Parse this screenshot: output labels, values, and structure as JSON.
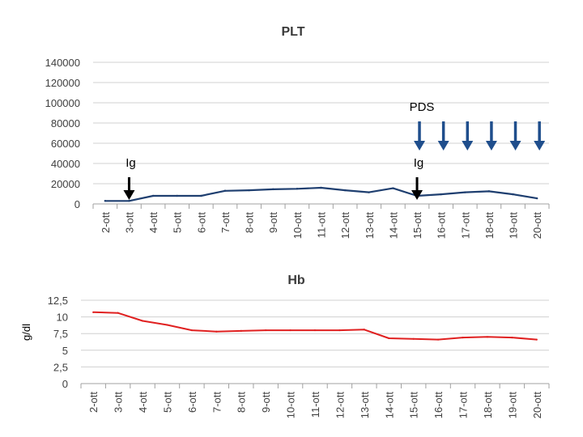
{
  "chart_data": [
    {
      "type": "line",
      "title": "PLT",
      "ylabel": "",
      "xlabel": "",
      "ylim": [
        0,
        140000
      ],
      "yticks": [
        "0",
        "20000",
        "40000",
        "60000",
        "80000",
        "100000",
        "120000",
        "140000"
      ],
      "ytick_values": [
        0,
        20000,
        40000,
        60000,
        80000,
        100000,
        120000,
        140000
      ],
      "categories": [
        "2-ott",
        "3-ott",
        "4-ott",
        "5-ott",
        "6-ott",
        "7-ott",
        "8-ott",
        "9-ott",
        "10-ott",
        "11-ott",
        "12-ott",
        "13-ott",
        "14-ott",
        "15-ott",
        "16-ott",
        "17-ott",
        "18-ott",
        "19-ott",
        "20-ott"
      ],
      "values": [
        3000,
        3000,
        8000,
        8000,
        8000,
        13000,
        13500,
        14500,
        15000,
        16000,
        13500,
        11500,
        15500,
        8000,
        9500,
        11500,
        12500,
        9500,
        5500
      ],
      "grid": true,
      "series_color": "#1f3f70",
      "annotations": {
        "ig_label": "Ig",
        "ig_positions": [
          "3-ott",
          "15-ott"
        ],
        "pds_label": "PDS",
        "pds_positions": [
          "15-ott",
          "16-ott",
          "17-ott",
          "18-ott",
          "19-ott",
          "20-ott"
        ],
        "black_arrow_color": "#000000",
        "blue_arrow_color": "#1f4e8c"
      }
    },
    {
      "type": "line",
      "title": "Hb",
      "ylabel": "g/dl",
      "xlabel": "",
      "ylim": [
        0,
        12.5
      ],
      "yticks": [
        "0",
        "2,5",
        "5",
        "7,5",
        "10",
        "12,5"
      ],
      "ytick_values": [
        0,
        2.5,
        5,
        7.5,
        10,
        12.5
      ],
      "categories": [
        "2-ott",
        "3-ott",
        "4-ott",
        "5-ott",
        "6-ott",
        "7-ott",
        "8-ott",
        "9-ott",
        "10-ott",
        "11-ott",
        "12-ott",
        "13-ott",
        "14-ott",
        "15-ott",
        "16-ott",
        "17-ott",
        "18-ott",
        "19-ott",
        "20-ott"
      ],
      "values": [
        10.7,
        10.6,
        9.4,
        8.8,
        8.0,
        7.8,
        7.9,
        8.0,
        8.0,
        8.0,
        8.0,
        8.1,
        6.8,
        6.7,
        6.6,
        6.9,
        7.0,
        6.9,
        6.6
      ],
      "grid": true,
      "series_color": "#e02020"
    }
  ]
}
